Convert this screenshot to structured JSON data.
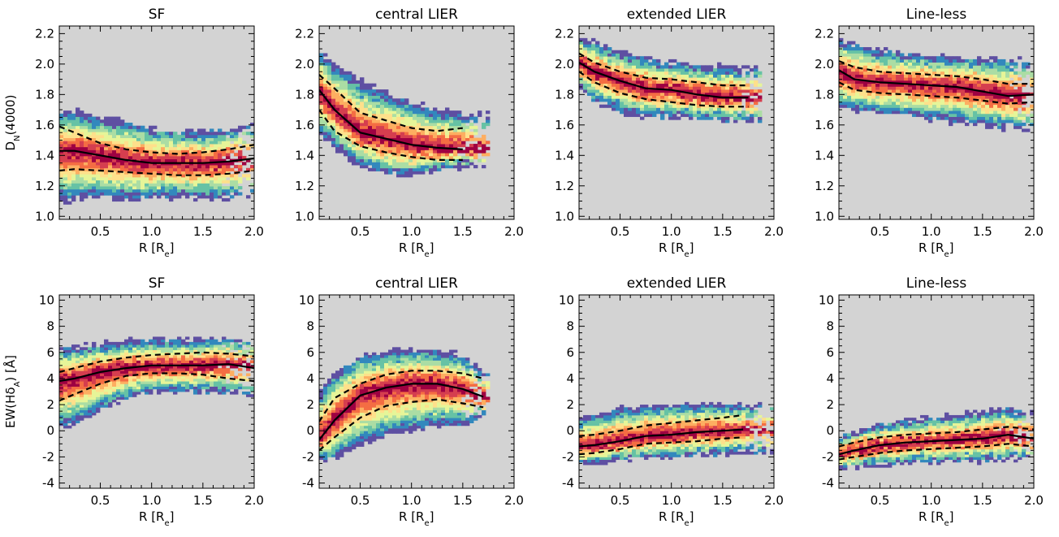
{
  "figure": {
    "column_titles": [
      "SF",
      "central LIER",
      "extended LIER",
      "Line-less"
    ],
    "xlabel": "R [R",
    "xlabel_sub": "e",
    "xlabel_close": "]",
    "ylabel_top": "D",
    "ylabel_top_sub": "N",
    "ylabel_top_rest": "(4000)",
    "ylabel_bottom": "EW(H",
    "ylabel_bottom_delta": "δ",
    "ylabel_bottom_sub": "A",
    "ylabel_bottom_rest": ")  [Å]",
    "background_color": "#d3d3d3",
    "density_colors": [
      "#5e4fa2",
      "#3288bd",
      "#66c2a5",
      "#abdda4",
      "#e6f598",
      "#fee08b",
      "#fdae61",
      "#f46d43",
      "#d53e4f",
      "#9e0142"
    ]
  },
  "chart_data": [
    {
      "type": "heatmap",
      "title": "SF",
      "xlabel": "R [Re]",
      "ylabel": "DN(4000)",
      "xlim": [
        0.1,
        2.0
      ],
      "ylim": [
        0.98,
        2.25
      ],
      "xticks": [
        0.5,
        1.0,
        1.5,
        2.0
      ],
      "yticks": [
        1.0,
        1.2,
        1.4,
        1.6,
        1.8,
        2.0,
        2.2
      ],
      "median_x": [
        0.1,
        0.25,
        0.5,
        0.75,
        1.0,
        1.25,
        1.5,
        1.75,
        2.0
      ],
      "median_y": [
        1.43,
        1.43,
        1.4,
        1.37,
        1.35,
        1.35,
        1.35,
        1.36,
        1.38
      ],
      "lower_y": [
        1.3,
        1.31,
        1.3,
        1.29,
        1.28,
        1.27,
        1.27,
        1.28,
        1.3
      ],
      "upper_y": [
        1.59,
        1.55,
        1.48,
        1.44,
        1.42,
        1.41,
        1.42,
        1.44,
        1.47
      ],
      "envelope_lo": [
        1.1,
        1.11,
        1.12,
        1.12,
        1.12,
        1.12,
        1.12,
        1.12,
        1.14
      ],
      "envelope_hi": [
        1.7,
        1.7,
        1.65,
        1.62,
        1.58,
        1.56,
        1.56,
        1.57,
        1.62
      ],
      "xmax": 2.0
    },
    {
      "type": "heatmap",
      "title": "central LIER",
      "xlabel": "R [Re]",
      "ylabel": "DN(4000)",
      "xlim": [
        0.1,
        2.0
      ],
      "ylim": [
        0.98,
        2.25
      ],
      "xticks": [
        0.5,
        1.0,
        1.5,
        2.0
      ],
      "yticks": [
        1.0,
        1.2,
        1.4,
        1.6,
        1.8,
        2.0,
        2.2
      ],
      "median_x": [
        0.1,
        0.25,
        0.5,
        0.75,
        1.0,
        1.25,
        1.5
      ],
      "median_y": [
        1.83,
        1.7,
        1.55,
        1.51,
        1.47,
        1.45,
        1.44
      ],
      "lower_y": [
        1.7,
        1.56,
        1.46,
        1.42,
        1.39,
        1.37,
        1.37
      ],
      "upper_y": [
        1.93,
        1.84,
        1.68,
        1.63,
        1.58,
        1.56,
        1.58
      ],
      "envelope_lo": [
        1.55,
        1.45,
        1.33,
        1.28,
        1.26,
        1.3,
        1.33
      ],
      "envelope_hi": [
        2.08,
        2.0,
        1.9,
        1.82,
        1.75,
        1.7,
        1.68
      ],
      "xmax": 1.75
    },
    {
      "type": "heatmap",
      "title": "extended LIER",
      "xlabel": "R [Re]",
      "ylabel": "DN(4000)",
      "xlim": [
        0.1,
        2.0
      ],
      "ylim": [
        0.98,
        2.25
      ],
      "xticks": [
        0.5,
        1.0,
        1.5,
        2.0
      ],
      "yticks": [
        1.0,
        1.2,
        1.4,
        1.6,
        1.8,
        2.0,
        2.2
      ],
      "median_x": [
        0.1,
        0.25,
        0.5,
        0.75,
        1.0,
        1.25,
        1.5,
        1.75
      ],
      "median_y": [
        2.01,
        1.95,
        1.89,
        1.84,
        1.83,
        1.8,
        1.78,
        1.78
      ],
      "lower_y": [
        1.95,
        1.88,
        1.81,
        1.77,
        1.75,
        1.73,
        1.72,
        1.72
      ],
      "upper_y": [
        2.07,
        2.01,
        1.95,
        1.91,
        1.9,
        1.88,
        1.86,
        1.86
      ],
      "envelope_lo": [
        1.85,
        1.76,
        1.68,
        1.65,
        1.65,
        1.64,
        1.64,
        1.62
      ],
      "envelope_hi": [
        2.18,
        2.14,
        2.08,
        2.04,
        2.01,
        2.0,
        1.99,
        1.98
      ],
      "xmax": 1.9
    },
    {
      "type": "heatmap",
      "title": "Line-less",
      "xlabel": "R [Re]",
      "ylabel": "DN(4000)",
      "xlim": [
        0.1,
        2.0
      ],
      "ylim": [
        0.98,
        2.25
      ],
      "xticks": [
        0.5,
        1.0,
        1.5,
        2.0
      ],
      "yticks": [
        1.0,
        1.2,
        1.4,
        1.6,
        1.8,
        2.0,
        2.2
      ],
      "median_x": [
        0.1,
        0.25,
        0.5,
        0.75,
        1.0,
        1.25,
        1.5,
        1.75,
        2.0
      ],
      "median_y": [
        1.96,
        1.9,
        1.88,
        1.87,
        1.86,
        1.85,
        1.82,
        1.79,
        1.8
      ],
      "lower_y": [
        1.88,
        1.83,
        1.81,
        1.8,
        1.79,
        1.78,
        1.76,
        1.74,
        1.75
      ],
      "upper_y": [
        2.02,
        1.98,
        1.95,
        1.94,
        1.93,
        1.92,
        1.9,
        1.87,
        1.87
      ],
      "envelope_lo": [
        1.72,
        1.7,
        1.68,
        1.66,
        1.64,
        1.62,
        1.6,
        1.58,
        1.58
      ],
      "envelope_hi": [
        2.16,
        2.13,
        2.09,
        2.07,
        2.06,
        2.05,
        2.04,
        2.03,
        2.02
      ],
      "xmax": 2.0
    },
    {
      "type": "heatmap",
      "title": "SF",
      "xlabel": "R [Re]",
      "ylabel": "EW(HδA) [Å]",
      "xlim": [
        0.1,
        2.0
      ],
      "ylim": [
        -4.4,
        10.4
      ],
      "xticks": [
        0.5,
        1.0,
        1.5,
        2.0
      ],
      "yticks": [
        -4,
        -2,
        0,
        2,
        4,
        6,
        8,
        10
      ],
      "median_x": [
        0.1,
        0.25,
        0.5,
        0.75,
        1.0,
        1.25,
        1.5,
        1.75,
        2.0
      ],
      "median_y": [
        3.8,
        4.0,
        4.5,
        4.8,
        5.0,
        5.0,
        5.0,
        5.1,
        4.8
      ],
      "lower_y": [
        2.3,
        2.8,
        3.6,
        4.2,
        4.4,
        4.4,
        4.3,
        4.0,
        3.8
      ],
      "upper_y": [
        4.5,
        4.8,
        5.3,
        5.6,
        5.8,
        5.9,
        6.0,
        5.9,
        5.7
      ],
      "envelope_lo": [
        0.2,
        0.5,
        1.5,
        2.5,
        3.0,
        3.0,
        3.0,
        2.8,
        2.5
      ],
      "envelope_hi": [
        6.3,
        6.4,
        6.7,
        6.9,
        7.0,
        7.0,
        7.1,
        7.1,
        7.0
      ],
      "xmax": 2.0
    },
    {
      "type": "heatmap",
      "title": "central LIER",
      "xlabel": "R [Re]",
      "ylabel": "EW(HδA) [Å]",
      "xlim": [
        0.1,
        2.0
      ],
      "ylim": [
        -4.4,
        10.4
      ],
      "xticks": [
        0.5,
        1.0,
        1.5,
        2.0
      ],
      "yticks": [
        -4,
        -2,
        0,
        2,
        4,
        6,
        8,
        10
      ],
      "median_x": [
        0.1,
        0.25,
        0.5,
        0.75,
        1.0,
        1.25,
        1.5,
        1.7
      ],
      "median_y": [
        -0.7,
        0.8,
        2.7,
        3.3,
        3.6,
        3.6,
        3.2,
        2.6
      ],
      "lower_y": [
        -1.5,
        -0.5,
        1.0,
        1.9,
        2.2,
        2.4,
        2.1,
        1.8
      ],
      "upper_y": [
        0.7,
        2.5,
        3.6,
        4.3,
        4.6,
        4.6,
        4.4,
        4.0
      ],
      "envelope_lo": [
        -2.3,
        -2.1,
        -1.2,
        -0.4,
        0.0,
        0.3,
        0.4,
        1.0
      ],
      "envelope_hi": [
        2.8,
        4.5,
        5.8,
        6.1,
        6.3,
        6.2,
        5.8,
        4.6
      ],
      "xmax": 1.75
    },
    {
      "type": "heatmap",
      "title": "extended LIER",
      "xlabel": "R [Re]",
      "ylabel": "EW(HδA) [Å]",
      "xlim": [
        0.1,
        2.0
      ],
      "ylim": [
        -4.4,
        10.4
      ],
      "xticks": [
        0.5,
        1.0,
        1.5,
        2.0
      ],
      "yticks": [
        -4,
        -2,
        0,
        2,
        4,
        6,
        8,
        10
      ],
      "median_x": [
        0.1,
        0.25,
        0.5,
        0.75,
        1.0,
        1.25,
        1.5,
        1.7
      ],
      "median_y": [
        -1.2,
        -1.1,
        -0.8,
        -0.4,
        -0.3,
        -0.1,
        0.0,
        0.1
      ],
      "lower_y": [
        -1.8,
        -1.7,
        -1.4,
        -1.0,
        -0.9,
        -0.8,
        -0.6,
        -0.5
      ],
      "upper_y": [
        -0.4,
        -0.3,
        0.0,
        0.4,
        0.6,
        0.8,
        1.0,
        1.2
      ],
      "envelope_lo": [
        -2.6,
        -2.5,
        -2.3,
        -2.1,
        -2.0,
        -1.9,
        -1.8,
        -1.6
      ],
      "envelope_hi": [
        0.9,
        1.3,
        1.7,
        1.9,
        2.0,
        2.1,
        2.1,
        2.0
      ],
      "xmax": 2.0
    },
    {
      "type": "heatmap",
      "title": "Line-less",
      "xlabel": "R [Re]",
      "ylabel": "EW(HδA) [Å]",
      "xlim": [
        0.1,
        2.0
      ],
      "ylim": [
        -4.4,
        10.4
      ],
      "xticks": [
        0.5,
        1.0,
        1.5,
        2.0
      ],
      "yticks": [
        -4,
        -2,
        0,
        2,
        4,
        6,
        8,
        10
      ],
      "median_x": [
        0.1,
        0.25,
        0.5,
        0.75,
        1.0,
        1.25,
        1.5,
        1.75,
        2.0
      ],
      "median_y": [
        -1.8,
        -1.5,
        -1.1,
        -0.9,
        -0.8,
        -0.7,
        -0.6,
        -0.3,
        -0.6
      ],
      "lower_y": [
        -2.2,
        -2.0,
        -1.7,
        -1.5,
        -1.4,
        -1.3,
        -1.2,
        -1.0,
        -1.2
      ],
      "upper_y": [
        -1.2,
        -0.9,
        -0.5,
        -0.3,
        -0.2,
        -0.1,
        0.1,
        0.3,
        0.1
      ],
      "envelope_lo": [
        -2.9,
        -2.8,
        -2.6,
        -2.5,
        -2.4,
        -2.3,
        -2.3,
        -2.2,
        -2.2
      ],
      "envelope_hi": [
        -0.4,
        0.0,
        0.5,
        0.8,
        1.0,
        1.2,
        1.5,
        1.7,
        1.3
      ],
      "xmax": 2.0
    }
  ]
}
